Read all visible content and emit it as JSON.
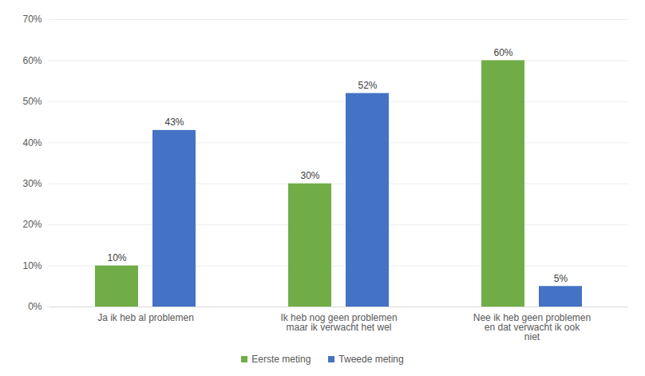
{
  "chart_data": {
    "type": "bar",
    "categories": [
      "Ja ik heb al problemen",
      "Ik heb nog geen problemen maar ik verwacht het wel",
      "Nee ik heb geen problemen en dat verwacht ik ook niet"
    ],
    "series": [
      {
        "name": "Eerste meting",
        "color": "#70ad47",
        "values": [
          10,
          30,
          60
        ],
        "value_labels": [
          "10%",
          "30%",
          "60%"
        ]
      },
      {
        "name": "Tweede meting",
        "color": "#4472c4",
        "values": [
          43,
          52,
          5
        ],
        "value_labels": [
          "43%",
          "52%",
          "5%"
        ]
      }
    ],
    "ylim": [
      0,
      70
    ],
    "yticks": [
      {
        "value": 0,
        "label": "0%"
      },
      {
        "value": 10,
        "label": "10%"
      },
      {
        "value": 20,
        "label": "20%"
      },
      {
        "value": 30,
        "label": "30%"
      },
      {
        "value": 40,
        "label": "40%"
      },
      {
        "value": 50,
        "label": "50%"
      },
      {
        "value": 60,
        "label": "60%"
      },
      {
        "value": 70,
        "label": "70%"
      }
    ],
    "grid": true,
    "legend": "bottom",
    "data_labels": true
  }
}
